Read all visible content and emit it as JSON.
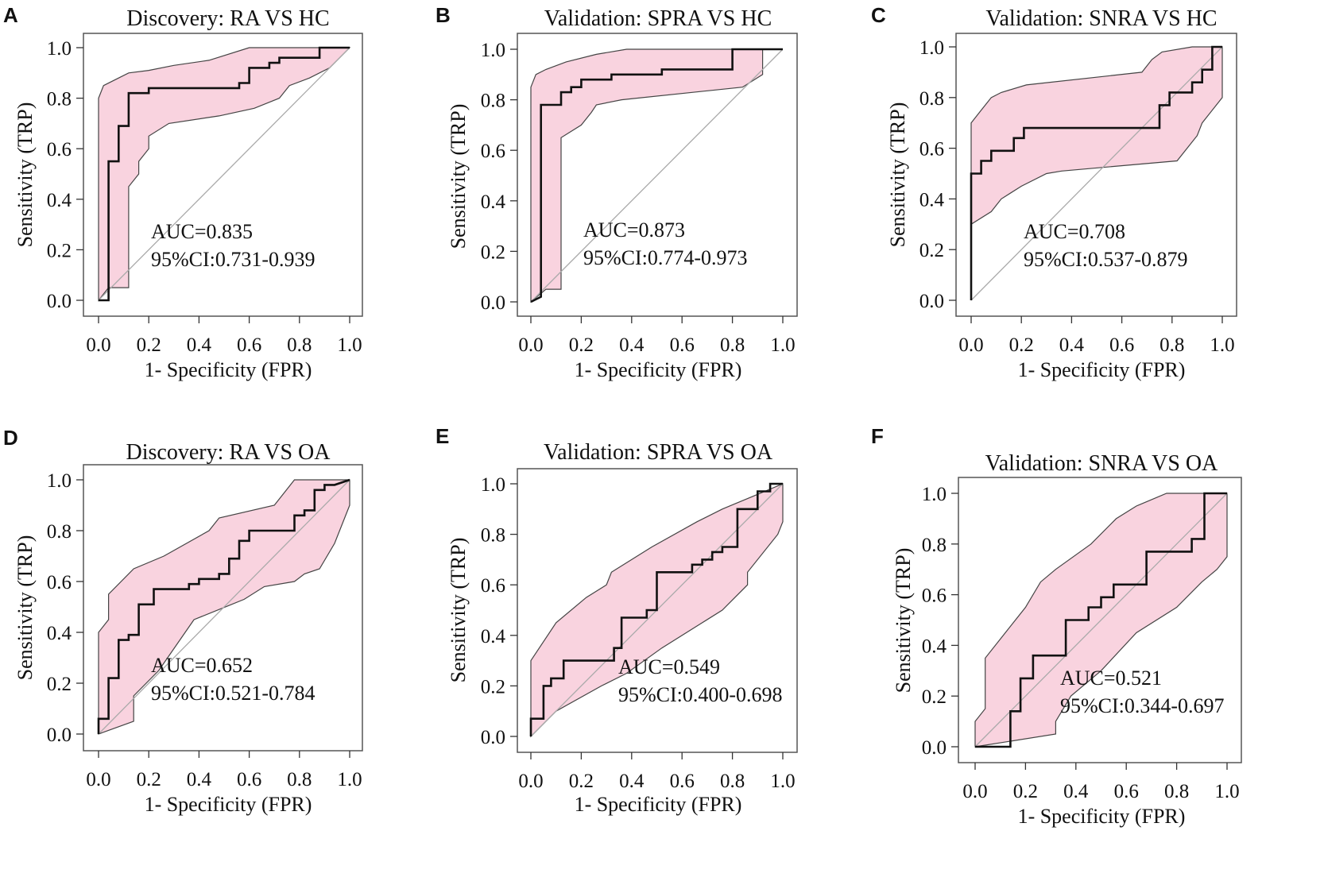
{
  "figure": {
    "description_free": true
  },
  "colors": {
    "ci_fill": "#f9d3df",
    "ci_edge": "#444444",
    "roc_line": "#111111",
    "diagonal": "#aaaaaa",
    "frame": "#555555"
  },
  "chart_data": [
    {
      "panel": "A",
      "type": "line",
      "title": "Discovery: RA VS HC",
      "xlabel": "1- Specificity (FPR)",
      "ylabel": "Sensitivity (TRP)",
      "xlim": [
        0,
        1
      ],
      "ylim": [
        0,
        1
      ],
      "xticks": [
        "0.0",
        "0.2",
        "0.4",
        "0.6",
        "0.8",
        "1.0"
      ],
      "yticks": [
        "0.0",
        "0.2",
        "0.4",
        "0.6",
        "0.8",
        "1.0"
      ],
      "auc_text": "AUC=0.835",
      "ci_text": "95%CI:0.731-0.939",
      "roc": {
        "x": [
          0,
          0.04,
          0.04,
          0.08,
          0.08,
          0.12,
          0.12,
          0.2,
          0.2,
          0.56,
          0.56,
          0.6,
          0.6,
          0.68,
          0.68,
          0.72,
          0.72,
          0.76,
          0.76,
          0.88,
          0.88,
          1
        ],
        "y": [
          0,
          0,
          0.55,
          0.55,
          0.69,
          0.69,
          0.82,
          0.82,
          0.84,
          0.84,
          0.86,
          0.86,
          0.92,
          0.92,
          0.94,
          0.94,
          0.96,
          0.96,
          0.96,
          0.96,
          1,
          1
        ]
      },
      "ci_upper": {
        "x": [
          0,
          0.02,
          0.06,
          0.12,
          0.2,
          0.3,
          0.44,
          0.6,
          0.64,
          0.7,
          0.78,
          1
        ],
        "y": [
          0.8,
          0.85,
          0.87,
          0.9,
          0.91,
          0.93,
          0.95,
          1,
          1,
          1,
          1,
          1
        ]
      },
      "ci_lower": {
        "x": [
          0,
          0.04,
          0.12,
          0.12,
          0.16,
          0.16,
          0.2,
          0.2,
          0.28,
          0.48,
          0.62,
          0.72,
          0.76,
          0.84,
          0.92,
          1
        ],
        "y": [
          0,
          0.05,
          0.05,
          0.45,
          0.5,
          0.55,
          0.6,
          0.65,
          0.7,
          0.73,
          0.76,
          0.8,
          0.85,
          0.88,
          0.92,
          1
        ]
      }
    },
    {
      "panel": "B",
      "type": "line",
      "title": "Validation: SPRA VS HC",
      "xlabel": "1- Specificity (FPR)",
      "ylabel": "Sensitivity (TRP)",
      "xlim": [
        0,
        1
      ],
      "ylim": [
        0,
        1
      ],
      "xticks": [
        "0.0",
        "0.2",
        "0.4",
        "0.6",
        "0.8",
        "1.0"
      ],
      "yticks": [
        "0.0",
        "0.2",
        "0.4",
        "0.6",
        "0.8",
        "1.0"
      ],
      "auc_text": "AUC=0.873",
      "ci_text": "95%CI:0.774-0.973",
      "roc": {
        "x": [
          0,
          0.04,
          0.04,
          0.08,
          0.08,
          0.12,
          0.12,
          0.16,
          0.16,
          0.2,
          0.2,
          0.32,
          0.32,
          0.52,
          0.52,
          0.8,
          0.8,
          1
        ],
        "y": [
          0,
          0.02,
          0.78,
          0.78,
          0.78,
          0.78,
          0.83,
          0.83,
          0.85,
          0.85,
          0.88,
          0.88,
          0.9,
          0.9,
          0.92,
          0.92,
          1,
          1
        ]
      },
      "ci_upper": {
        "x": [
          0,
          0.02,
          0.06,
          0.14,
          0.26,
          0.38,
          0.48,
          0.9,
          1
        ],
        "y": [
          0.85,
          0.9,
          0.92,
          0.95,
          0.98,
          1,
          1,
          1,
          1
        ]
      },
      "ci_lower": {
        "x": [
          0,
          0.06,
          0.12,
          0.12,
          0.2,
          0.24,
          0.26,
          0.36,
          0.84,
          0.92,
          0.92
        ],
        "y": [
          0,
          0.05,
          0.05,
          0.65,
          0.7,
          0.75,
          0.78,
          0.8,
          0.85,
          0.9,
          1
        ]
      }
    },
    {
      "panel": "C",
      "type": "line",
      "title": "Validation: SNRA VS HC",
      "xlabel": "1- Specificity (FPR)",
      "ylabel": "Sensitivity (TRP)",
      "xlim": [
        0,
        1
      ],
      "ylim": [
        0,
        1
      ],
      "xticks": [
        "0.0",
        "0.2",
        "0.4",
        "0.6",
        "0.8",
        "1.0"
      ],
      "yticks": [
        "0.0",
        "0.2",
        "0.4",
        "0.6",
        "0.8",
        "1.0"
      ],
      "auc_text": "AUC=0.708",
      "ci_text": "95%CI:0.537-0.879",
      "roc": {
        "x": [
          0,
          0,
          0.04,
          0.04,
          0.08,
          0.08,
          0.17,
          0.17,
          0.21,
          0.21,
          0.75,
          0.75,
          0.79,
          0.79,
          0.88,
          0.88,
          0.92,
          0.92,
          0.96,
          0.96,
          1
        ],
        "y": [
          0,
          0.5,
          0.5,
          0.55,
          0.55,
          0.59,
          0.59,
          0.64,
          0.64,
          0.68,
          0.68,
          0.77,
          0.77,
          0.82,
          0.82,
          0.86,
          0.86,
          0.91,
          0.91,
          1,
          1
        ]
      },
      "ci_upper": {
        "x": [
          0,
          0.04,
          0.08,
          0.12,
          0.22,
          0.68,
          0.72,
          0.76,
          0.88,
          1
        ],
        "y": [
          0.7,
          0.75,
          0.8,
          0.82,
          0.85,
          0.9,
          0.95,
          0.98,
          1,
          1
        ]
      },
      "ci_lower": {
        "x": [
          0,
          0.08,
          0.12,
          0.2,
          0.3,
          0.36,
          0.82,
          0.9,
          0.92,
          1
        ],
        "y": [
          0.3,
          0.35,
          0.4,
          0.45,
          0.5,
          0.51,
          0.55,
          0.65,
          0.7,
          0.8
        ]
      }
    },
    {
      "panel": "D",
      "type": "line",
      "title": "Discovery: RA VS OA",
      "xlabel": "1- Specificity (FPR)",
      "ylabel": "Sensitivity (TRP)",
      "xlim": [
        0,
        1
      ],
      "ylim": [
        0,
        1
      ],
      "xticks": [
        "0.0",
        "0.2",
        "0.4",
        "0.6",
        "0.8",
        "1.0"
      ],
      "yticks": [
        "0.0",
        "0.2",
        "0.4",
        "0.6",
        "0.8",
        "1.0"
      ],
      "auc_text": "AUC=0.652",
      "ci_text": "95%CI:0.521-0.784",
      "roc": {
        "x": [
          0,
          0,
          0.04,
          0.04,
          0.08,
          0.08,
          0.12,
          0.12,
          0.16,
          0.16,
          0.22,
          0.22,
          0.36,
          0.36,
          0.4,
          0.4,
          0.48,
          0.48,
          0.52,
          0.52,
          0.56,
          0.56,
          0.6,
          0.6,
          0.78,
          0.78,
          0.82,
          0.82,
          0.86,
          0.86,
          0.9,
          0.9,
          0.94,
          0.94,
          1
        ],
        "y": [
          0,
          0.06,
          0.06,
          0.22,
          0.22,
          0.37,
          0.37,
          0.39,
          0.39,
          0.51,
          0.51,
          0.57,
          0.57,
          0.59,
          0.59,
          0.61,
          0.61,
          0.63,
          0.63,
          0.69,
          0.69,
          0.76,
          0.76,
          0.8,
          0.8,
          0.86,
          0.86,
          0.88,
          0.88,
          0.96,
          0.96,
          0.98,
          0.98,
          0.98,
          1
        ]
      },
      "ci_upper": {
        "x": [
          0,
          0.04,
          0.04,
          0.14,
          0.26,
          0.44,
          0.48,
          0.7,
          0.78,
          1
        ],
        "y": [
          0.4,
          0.45,
          0.55,
          0.65,
          0.7,
          0.8,
          0.85,
          0.9,
          1,
          1
        ]
      },
      "ci_lower": {
        "x": [
          0,
          0.14,
          0.14,
          0.24,
          0.38,
          0.58,
          0.66,
          0.78,
          0.82,
          0.88,
          0.94,
          1
        ],
        "y": [
          0,
          0.05,
          0.15,
          0.25,
          0.45,
          0.53,
          0.58,
          0.6,
          0.63,
          0.65,
          0.75,
          0.9
        ]
      }
    },
    {
      "panel": "E",
      "type": "line",
      "title": "Validation: SPRA VS OA",
      "xlabel": "1- Specificity (FPR)",
      "ylabel": "Sensitivity (TRP)",
      "xlim": [
        0,
        1
      ],
      "ylim": [
        0,
        1
      ],
      "xticks": [
        "0.0",
        "0.2",
        "0.4",
        "0.6",
        "0.8",
        "1.0"
      ],
      "yticks": [
        "0.0",
        "0.2",
        "0.4",
        "0.6",
        "0.8",
        "1.0"
      ],
      "auc_text": "AUC=0.549",
      "ci_text": "95%CI:0.400-0.698",
      "roc": {
        "x": [
          0,
          0,
          0.05,
          0.05,
          0.08,
          0.08,
          0.13,
          0.13,
          0.33,
          0.33,
          0.36,
          0.36,
          0.46,
          0.46,
          0.5,
          0.5,
          0.64,
          0.64,
          0.68,
          0.68,
          0.72,
          0.72,
          0.76,
          0.76,
          0.82,
          0.82,
          0.9,
          0.9,
          0.95,
          0.95,
          1
        ],
        "y": [
          0,
          0.07,
          0.07,
          0.2,
          0.2,
          0.23,
          0.23,
          0.3,
          0.3,
          0.35,
          0.35,
          0.47,
          0.47,
          0.5,
          0.5,
          0.65,
          0.65,
          0.68,
          0.68,
          0.7,
          0.7,
          0.73,
          0.73,
          0.75,
          0.75,
          0.9,
          0.9,
          0.97,
          0.97,
          1,
          1
        ]
      },
      "ci_upper": {
        "x": [
          0,
          0.1,
          0.22,
          0.3,
          0.32,
          0.48,
          0.66,
          0.76,
          0.88,
          1
        ],
        "y": [
          0.3,
          0.45,
          0.55,
          0.6,
          0.65,
          0.75,
          0.85,
          0.9,
          0.95,
          1
        ]
      },
      "ci_lower": {
        "x": [
          0,
          0.1,
          0.28,
          0.38,
          0.52,
          0.68,
          0.76,
          0.86,
          0.86,
          0.98,
          1
        ],
        "y": [
          0,
          0.1,
          0.2,
          0.25,
          0.35,
          0.45,
          0.5,
          0.6,
          0.65,
          0.8,
          0.85
        ]
      }
    },
    {
      "panel": "F",
      "type": "line",
      "title": "Validation: SNRA VS OA",
      "xlabel": "1- Specificity (FPR)",
      "ylabel": "Sensitivity (TRP)",
      "xlim": [
        0,
        1
      ],
      "ylim": [
        0,
        1
      ],
      "xticks": [
        "0.0",
        "0.2",
        "0.4",
        "0.6",
        "0.8",
        "1.0"
      ],
      "yticks": [
        "0.0",
        "0.2",
        "0.4",
        "0.6",
        "0.8",
        "1.0"
      ],
      "auc_text": "AUC=0.521",
      "ci_text": "95%CI:0.344-0.697",
      "roc": {
        "x": [
          0,
          0.14,
          0.14,
          0.18,
          0.18,
          0.23,
          0.23,
          0.36,
          0.36,
          0.45,
          0.45,
          0.5,
          0.5,
          0.55,
          0.55,
          0.68,
          0.68,
          0.86,
          0.86,
          0.91,
          0.91,
          1
        ],
        "y": [
          0,
          0,
          0.14,
          0.14,
          0.27,
          0.27,
          0.36,
          0.36,
          0.5,
          0.5,
          0.55,
          0.55,
          0.59,
          0.59,
          0.64,
          0.64,
          0.77,
          0.77,
          0.82,
          0.82,
          1,
          1
        ]
      },
      "ci_upper": {
        "x": [
          0,
          0.04,
          0.04,
          0.12,
          0.16,
          0.2,
          0.26,
          0.32,
          0.46,
          0.56,
          0.64,
          0.76,
          1
        ],
        "y": [
          0.1,
          0.15,
          0.35,
          0.45,
          0.5,
          0.55,
          0.65,
          0.7,
          0.8,
          0.9,
          0.95,
          1,
          1
        ]
      },
      "ci_lower": {
        "x": [
          0,
          0.32,
          0.32,
          0.38,
          0.5,
          0.64,
          0.8,
          0.9,
          0.96,
          1
        ],
        "y": [
          0,
          0.05,
          0.1,
          0.2,
          0.3,
          0.45,
          0.55,
          0.65,
          0.7,
          0.75
        ]
      }
    }
  ]
}
